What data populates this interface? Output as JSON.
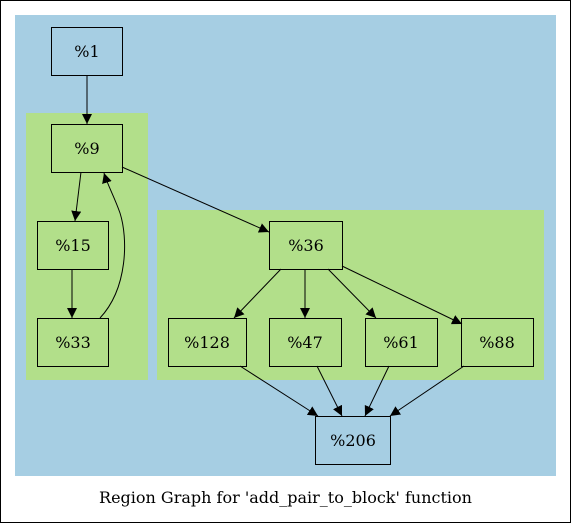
{
  "caption": "Region Graph for 'add_pair_to_block' function",
  "colors": {
    "outer_region": "#a6cee3",
    "inner_region": "#b2df8a",
    "stroke": "#000000"
  },
  "nodes": {
    "n1": "%1",
    "n9": "%9",
    "n15": "%15",
    "n33": "%33",
    "n36": "%36",
    "n128": "%128",
    "n47": "%47",
    "n61": "%61",
    "n88": "%88",
    "n206": "%206"
  },
  "edges": [
    [
      "%1",
      "%9"
    ],
    [
      "%9",
      "%15"
    ],
    [
      "%15",
      "%33"
    ],
    [
      "%33",
      "%9"
    ],
    [
      "%9",
      "%36"
    ],
    [
      "%36",
      "%128"
    ],
    [
      "%36",
      "%47"
    ],
    [
      "%36",
      "%61"
    ],
    [
      "%36",
      "%88"
    ],
    [
      "%128",
      "%206"
    ],
    [
      "%47",
      "%206"
    ],
    [
      "%61",
      "%206"
    ],
    [
      "%88",
      "%206"
    ]
  ]
}
